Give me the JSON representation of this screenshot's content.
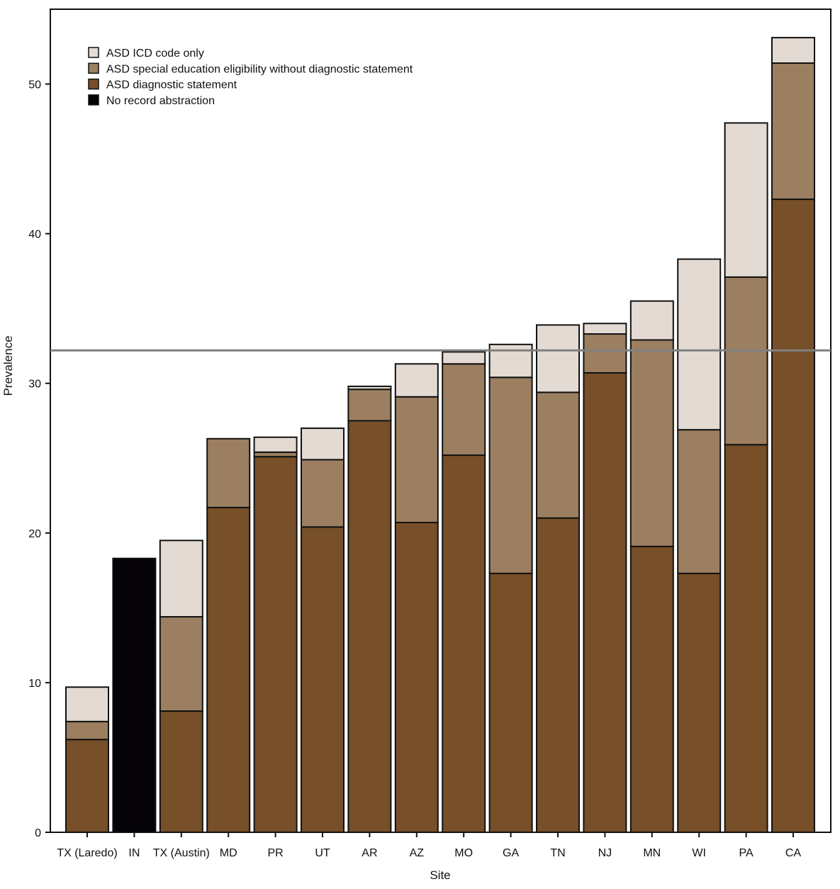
{
  "chart_data": {
    "type": "bar",
    "stacked": true,
    "xlabel": "Site",
    "ylabel": "Prevalence",
    "ylim": [
      0,
      55
    ],
    "yticks": [
      0,
      10,
      20,
      30,
      40,
      50
    ],
    "grid": false,
    "legend_position": "top-left",
    "reference_line": 32.2,
    "categories": [
      "TX (Laredo)",
      "IN",
      "TX (Austin)",
      "MD",
      "PR",
      "UT",
      "AR",
      "AZ",
      "MO",
      "GA",
      "TN",
      "NJ",
      "MN",
      "WI",
      "PA",
      "CA"
    ],
    "series": [
      {
        "name": "No record abstraction",
        "color": "#050307",
        "values": [
          0,
          18.3,
          0,
          0,
          0,
          0,
          0,
          0,
          0,
          0,
          0,
          0,
          0,
          0,
          0,
          0
        ]
      },
      {
        "name": "ASD diagnostic statement",
        "color": "#774f28",
        "values": [
          6.2,
          0,
          8.1,
          21.7,
          25.1,
          20.4,
          27.5,
          20.7,
          25.2,
          17.3,
          21.0,
          30.7,
          19.1,
          17.3,
          25.9,
          42.3
        ]
      },
      {
        "name": "ASD special education eligibility without diagnostic statement",
        "color": "#9c7f60",
        "values": [
          1.2,
          0,
          6.3,
          4.6,
          0.3,
          4.5,
          2.1,
          8.4,
          6.1,
          13.1,
          8.4,
          2.6,
          13.8,
          9.6,
          11.2,
          9.1
        ]
      },
      {
        "name": "ASD ICD code only",
        "color": "#e3dbd3",
        "values": [
          2.3,
          0,
          5.1,
          0,
          1.0,
          2.1,
          0.2,
          2.2,
          0.8,
          2.2,
          4.5,
          0.7,
          2.6,
          11.4,
          10.3,
          1.7
        ]
      }
    ],
    "legend_order": [
      3,
      2,
      1,
      0
    ]
  }
}
